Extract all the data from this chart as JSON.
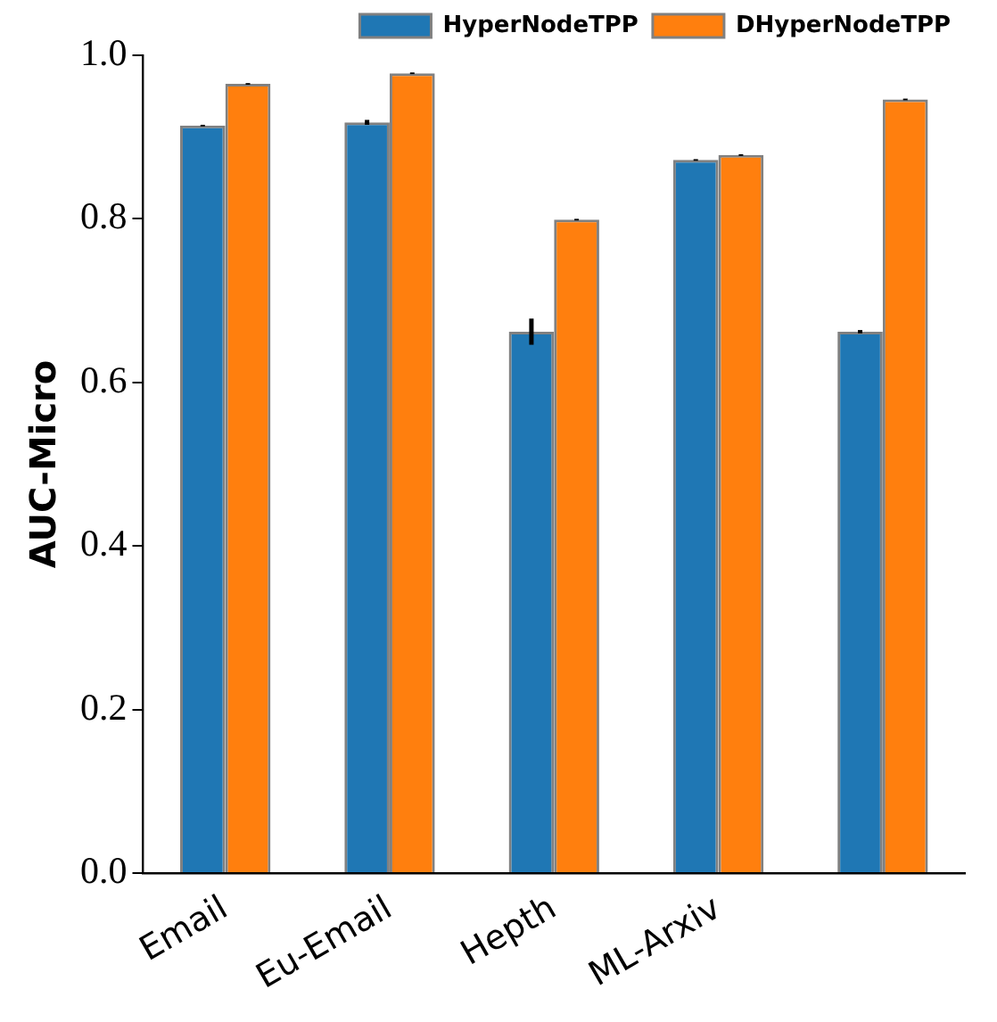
{
  "chart_data": {
    "type": "bar",
    "ylabel": "AUC-Micro",
    "categories": [
      "Email",
      "Eu-Email",
      "Hepth",
      "ML-Arxiv",
      null
    ],
    "series": [
      {
        "name": "HyperNodeTPP",
        "color": "#1f77b4",
        "values": [
          0.914,
          0.918,
          0.662,
          0.872,
          0.662
        ],
        "errors": [
          0.001,
          0.003,
          0.016,
          0.001,
          0.002
        ]
      },
      {
        "name": "DHyperNodeTPP",
        "color": "#ff7f0e",
        "values": [
          0.965,
          0.978,
          0.799,
          0.878,
          0.946
        ],
        "errors": [
          0.001,
          0.001,
          0.001,
          0.001,
          0.001
        ]
      }
    ],
    "ylim": [
      0,
      1.0
    ],
    "yticks": [
      {
        "value": 0,
        "label": "0.0"
      },
      0.2,
      0.4,
      0.6,
      0.8,
      {
        "value": 1.0,
        "label": "1.0"
      }
    ],
    "grid": false,
    "legend": "top"
  }
}
